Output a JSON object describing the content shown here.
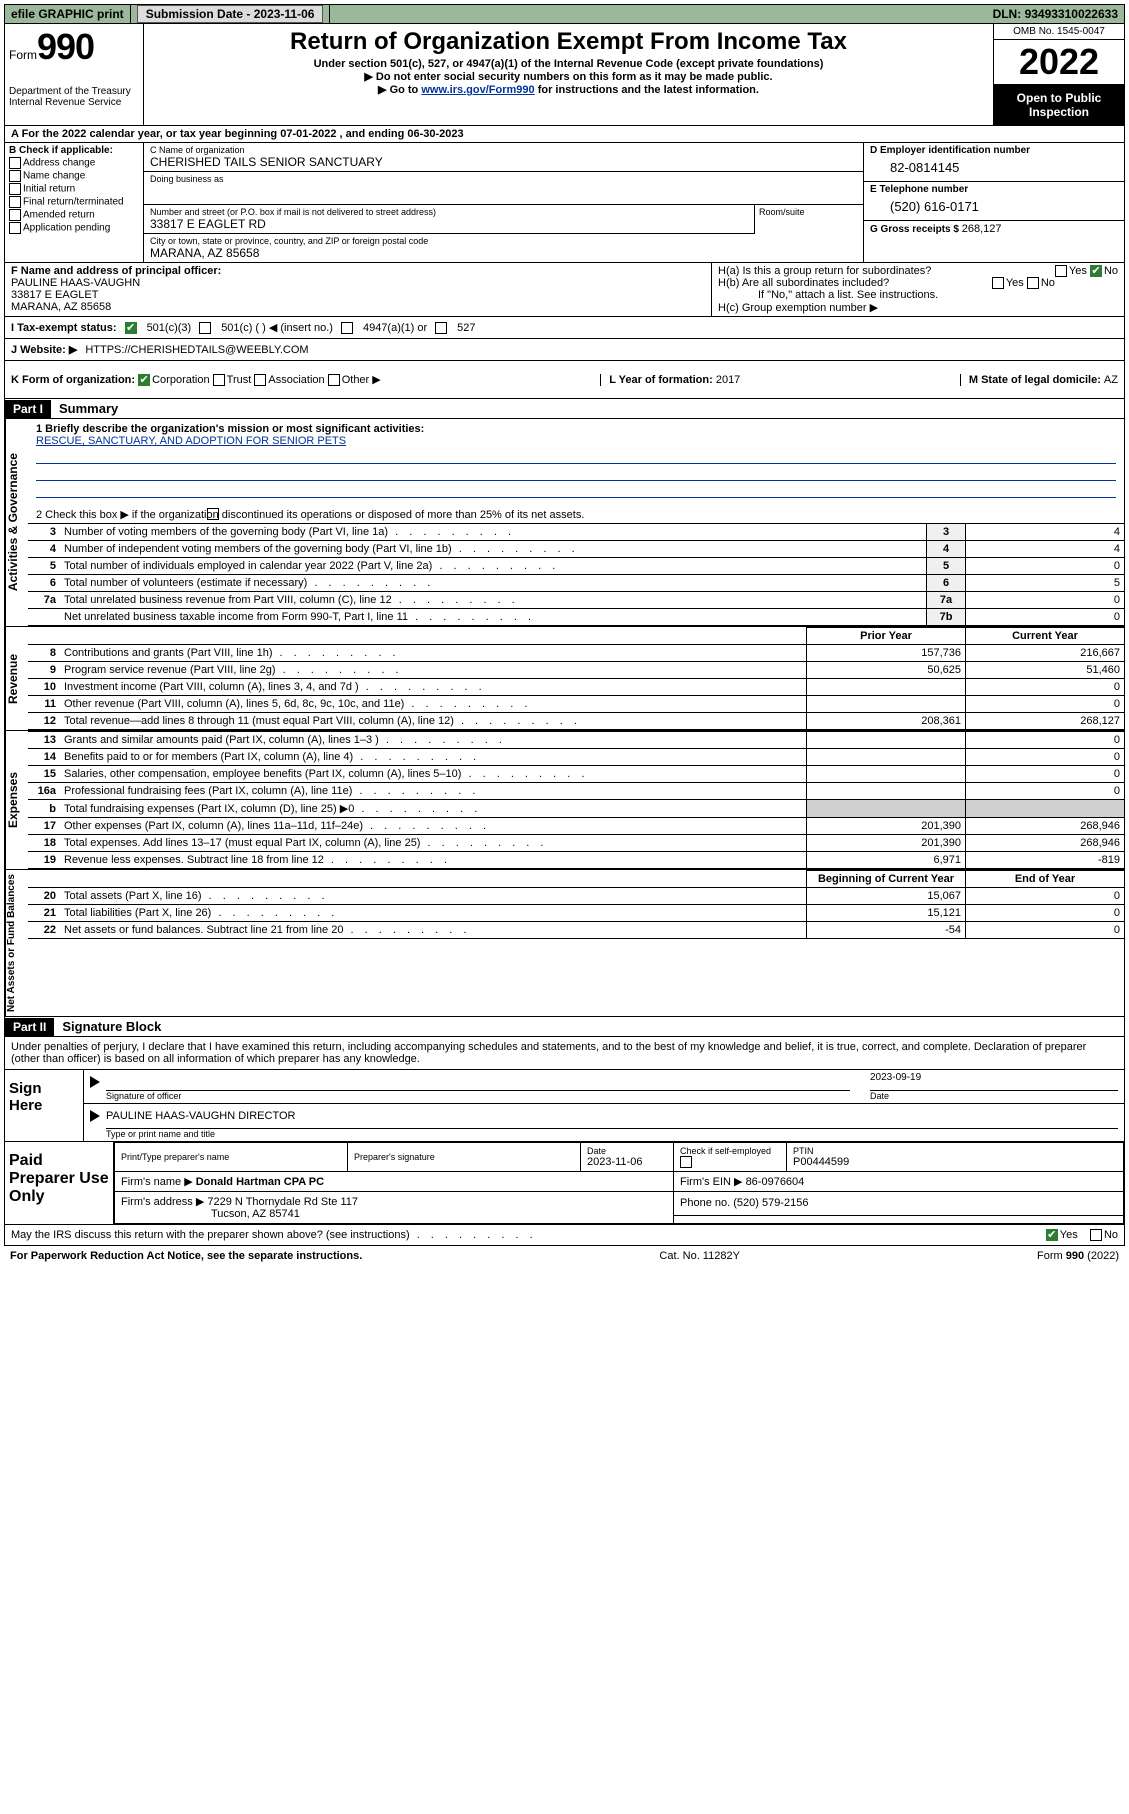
{
  "topbar": {
    "efile": "efile GRAPHIC print",
    "sub_label": "Submission Date - ",
    "sub_date": "2023-11-06",
    "dln_label": "DLN: ",
    "dln": "93493310022633"
  },
  "header": {
    "form_prefix": "Form",
    "form_no": "990",
    "dept": "Department of the Treasury\nInternal Revenue Service",
    "title": "Return of Organization Exempt From Income Tax",
    "sub1": "Under section 501(c), 527, or 4947(a)(1) of the Internal Revenue Code (except private foundations)",
    "sub2": "▶ Do not enter social security numbers on this form as it may be made public.",
    "sub3_pre": "▶ Go to ",
    "sub3_link": "www.irs.gov/Form990",
    "sub3_post": " for instructions and the latest information.",
    "omb": "OMB No. 1545-0047",
    "year": "2022",
    "open": "Open to Public Inspection"
  },
  "period": {
    "label_a": "A For the 2022 calendar year, or tax year beginning ",
    "begin": "07-01-2022",
    "mid": " , and ending ",
    "end": "06-30-2023"
  },
  "colB": {
    "heading": "B Check if applicable:",
    "items": [
      "Address change",
      "Name change",
      "Initial return",
      "Final return/terminated",
      "Amended return",
      "Application pending"
    ]
  },
  "colC": {
    "name_lbl": "C Name of organization",
    "name": "CHERISHED TAILS SENIOR SANCTUARY",
    "dba_lbl": "Doing business as",
    "addr_lbl": "Number and street (or P.O. box if mail is not delivered to street address)",
    "room_lbl": "Room/suite",
    "addr": "33817 E EAGLET RD",
    "city_lbl": "City or town, state or province, country, and ZIP or foreign postal code",
    "city": "MARANA, AZ  85658"
  },
  "colD": {
    "ein_lbl": "D Employer identification number",
    "ein": "82-0814145",
    "tel_lbl": "E Telephone number",
    "tel": "(520) 616-0171",
    "gross_lbl": "G Gross receipts $ ",
    "gross": "268,127"
  },
  "rowF": {
    "lbl": "F Name and address of principal officer:",
    "name": "PAULINE HAAS-VAUGHN",
    "addr1": "33817 E EAGLET",
    "addr2": "MARANA, AZ  85658"
  },
  "rowH": {
    "ha": "H(a)  Is this a group return for subordinates?",
    "ha_yes": "Yes",
    "ha_no": "No",
    "hb": "H(b)  Are all subordinates included?",
    "hb_yes": "Yes",
    "hb_no": "No",
    "hb_note": "If \"No,\" attach a list. See instructions.",
    "hc": "H(c)  Group exemption number ▶"
  },
  "rowI": {
    "lbl": "I   Tax-exempt status:",
    "o1": "501(c)(3)",
    "o2": "501(c) (  ) ◀ (insert no.)",
    "o3": "4947(a)(1) or",
    "o4": "527"
  },
  "rowJ": {
    "lbl": "J   Website: ▶  ",
    "val": "HTTPS://CHERISHEDTAILS@WEEBLY.COM"
  },
  "rowK": {
    "lbl": "K Form of organization:",
    "o1": "Corporation",
    "o2": "Trust",
    "o3": "Association",
    "o4": "Other ▶",
    "l_lbl": "L Year of formation: ",
    "l_val": "2017",
    "m_lbl": "M State of legal domicile: ",
    "m_val": "AZ"
  },
  "partI": {
    "tag": "Part I",
    "title": "Summary",
    "line1_lbl": "1  Briefly describe the organization's mission or most significant activities:",
    "line1_val": "RESCUE, SANCTUARY, AND ADOPTION FOR SENIOR PETS",
    "line2": "2   Check this box ▶      if the organization discontinued its operations or disposed of more than 25% of its net assets."
  },
  "gov_lines": [
    {
      "n": "3",
      "d": "Number of voting members of the governing body (Part VI, line 1a)",
      "box": "3",
      "v": "4"
    },
    {
      "n": "4",
      "d": "Number of independent voting members of the governing body (Part VI, line 1b)",
      "box": "4",
      "v": "4"
    },
    {
      "n": "5",
      "d": "Total number of individuals employed in calendar year 2022 (Part V, line 2a)",
      "box": "5",
      "v": "0"
    },
    {
      "n": "6",
      "d": "Total number of volunteers (estimate if necessary)",
      "box": "6",
      "v": "5"
    },
    {
      "n": "7a",
      "d": "Total unrelated business revenue from Part VIII, column (C), line 12",
      "box": "7a",
      "v": "0"
    },
    {
      "n": "",
      "d": "Net unrelated business taxable income from Form 990-T, Part I, line 11",
      "box": "7b",
      "v": "0"
    }
  ],
  "two_col_header": {
    "prior": "Prior Year",
    "current": "Current Year"
  },
  "rev_lines": [
    {
      "n": "8",
      "d": "Contributions and grants (Part VIII, line 1h)",
      "p": "157,736",
      "c": "216,667"
    },
    {
      "n": "9",
      "d": "Program service revenue (Part VIII, line 2g)",
      "p": "50,625",
      "c": "51,460"
    },
    {
      "n": "10",
      "d": "Investment income (Part VIII, column (A), lines 3, 4, and 7d )",
      "p": "",
      "c": "0"
    },
    {
      "n": "11",
      "d": "Other revenue (Part VIII, column (A), lines 5, 6d, 8c, 9c, 10c, and 11e)",
      "p": "",
      "c": "0"
    },
    {
      "n": "12",
      "d": "Total revenue—add lines 8 through 11 (must equal Part VIII, column (A), line 12)",
      "p": "208,361",
      "c": "268,127"
    }
  ],
  "exp_lines": [
    {
      "n": "13",
      "d": "Grants and similar amounts paid (Part IX, column (A), lines 1–3 )",
      "p": "",
      "c": "0"
    },
    {
      "n": "14",
      "d": "Benefits paid to or for members (Part IX, column (A), line 4)",
      "p": "",
      "c": "0"
    },
    {
      "n": "15",
      "d": "Salaries, other compensation, employee benefits (Part IX, column (A), lines 5–10)",
      "p": "",
      "c": "0"
    },
    {
      "n": "16a",
      "d": "Professional fundraising fees (Part IX, column (A), line 11e)",
      "p": "",
      "c": "0"
    },
    {
      "n": "b",
      "d": "Total fundraising expenses (Part IX, column (D), line 25) ▶0",
      "p": "grey",
      "c": "grey"
    },
    {
      "n": "17",
      "d": "Other expenses (Part IX, column (A), lines 11a–11d, 11f–24e)",
      "p": "201,390",
      "c": "268,946"
    },
    {
      "n": "18",
      "d": "Total expenses. Add lines 13–17 (must equal Part IX, column (A), line 25)",
      "p": "201,390",
      "c": "268,946"
    },
    {
      "n": "19",
      "d": "Revenue less expenses. Subtract line 18 from line 12",
      "p": "6,971",
      "c": "-819"
    }
  ],
  "net_header": {
    "begin": "Beginning of Current Year",
    "end": "End of Year"
  },
  "net_lines": [
    {
      "n": "20",
      "d": "Total assets (Part X, line 16)",
      "p": "15,067",
      "c": "0"
    },
    {
      "n": "21",
      "d": "Total liabilities (Part X, line 26)",
      "p": "15,121",
      "c": "0"
    },
    {
      "n": "22",
      "d": "Net assets or fund balances. Subtract line 21 from line 20",
      "p": "-54",
      "c": "0"
    }
  ],
  "side_labels": {
    "gov": "Activities & Governance",
    "rev": "Revenue",
    "exp": "Expenses",
    "net": "Net Assets or Fund Balances"
  },
  "partII": {
    "tag": "Part II",
    "title": "Signature Block",
    "declare": "Under penalties of perjury, I declare that I have examined this return, including accompanying schedules and statements, and to the best of my knowledge and belief, it is true, correct, and complete. Declaration of preparer (other than officer) is based on all information of which preparer has any knowledge."
  },
  "sign": {
    "here": "Sign Here",
    "sig_lbl": "Signature of officer",
    "date_lbl": "Date",
    "date": "2023-09-19",
    "name": "PAULINE HAAS-VAUGHN  DIRECTOR",
    "name_lbl": "Type or print name and title"
  },
  "paid": {
    "here": "Paid Preparer Use Only",
    "h1": "Print/Type preparer's name",
    "h2": "Preparer's signature",
    "h3": "Date",
    "h3v": "2023-11-06",
    "h4": "Check        if self-employed",
    "h5": "PTIN",
    "h5v": "P00444599",
    "firm_lbl": "Firm's name      ▶ ",
    "firm": "Donald Hartman CPA PC",
    "ein_lbl": "Firm's EIN ▶ ",
    "ein": "86-0976604",
    "addr_lbl": "Firm's address ▶ ",
    "addr1": "7229 N Thornydale Rd Ste 117",
    "addr2": "Tucson, AZ  85741",
    "phone_lbl": "Phone no. ",
    "phone": "(520) 579-2156"
  },
  "footer": {
    "discuss": "May the IRS discuss this return with the preparer shown above? (see instructions)",
    "yes": "Yes",
    "no": "No",
    "paperwork": "For Paperwork Reduction Act Notice, see the separate instructions.",
    "cat": "Cat. No. 11282Y",
    "form": "Form 990 (2022)"
  }
}
